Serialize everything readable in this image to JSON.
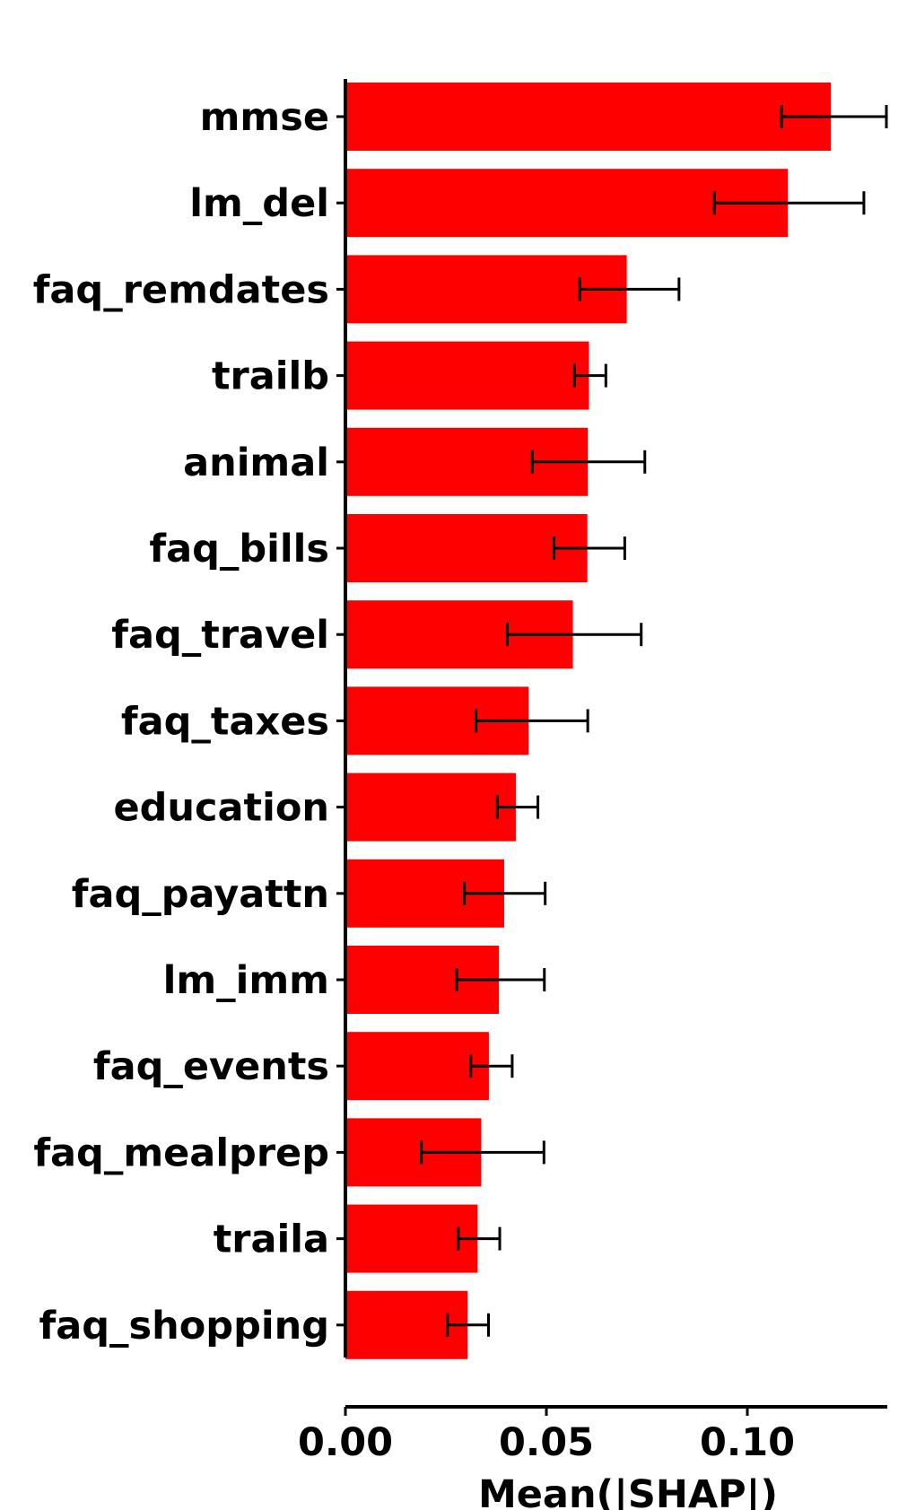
{
  "chart_data": {
    "type": "bar",
    "orientation": "horizontal",
    "title": "",
    "xlabel": "Mean(|SHAP|)",
    "ylabel": "",
    "xlim": [
      0.0,
      0.135
    ],
    "xticks": [
      {
        "value": 0.0,
        "label": "0.00"
      },
      {
        "value": 0.05,
        "label": "0.05"
      },
      {
        "value": 0.1,
        "label": "0.10"
      }
    ],
    "bar_color": "#ff0000",
    "error_color": "#000000",
    "grid": false,
    "legend": "none",
    "categories": [
      "mmse",
      "lm_del",
      "faq_remdates",
      "trailb",
      "animal",
      "faq_bills",
      "faq_travel",
      "faq_taxes",
      "education",
      "faq_payattn",
      "lm_imm",
      "faq_events",
      "faq_mealprep",
      "traila",
      "faq_shopping"
    ],
    "values": [
      0.1208,
      0.1101,
      0.07,
      0.0606,
      0.0603,
      0.0602,
      0.0566,
      0.0456,
      0.0424,
      0.0395,
      0.0382,
      0.0357,
      0.0338,
      0.0329,
      0.0304
    ],
    "error_low": [
      0.1085,
      0.0918,
      0.0583,
      0.057,
      0.0465,
      0.0519,
      0.0403,
      0.0325,
      0.0378,
      0.0296,
      0.0277,
      0.0312,
      0.0189,
      0.0281,
      0.0254
    ],
    "error_high": [
      0.1346,
      0.129,
      0.083,
      0.0648,
      0.0745,
      0.0695,
      0.0736,
      0.0603,
      0.0479,
      0.0497,
      0.0495,
      0.0415,
      0.0494,
      0.0384,
      0.0356
    ]
  }
}
